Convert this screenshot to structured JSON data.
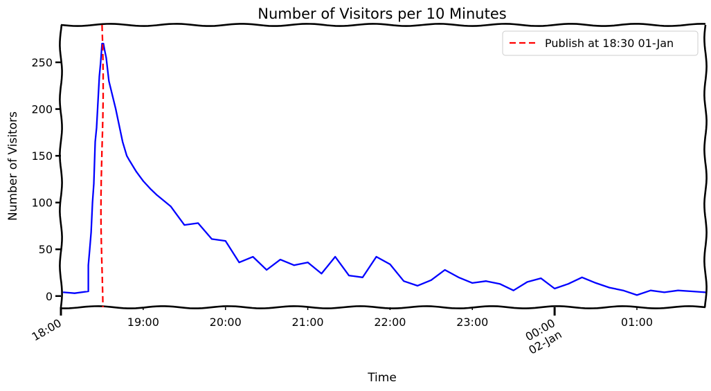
{
  "chart_data": {
    "type": "line",
    "title": "Number of Visitors per 10 Minutes",
    "xlabel": "Time",
    "ylabel": "Number of Visitors",
    "x_unit": "time of day (HH:MM), starting 01-Jan 18:00",
    "xlim": [
      "18:00",
      "01:50"
    ],
    "ylim": [
      -12,
      290
    ],
    "y_ticks": [
      0,
      50,
      100,
      150,
      200,
      250
    ],
    "x_ticks": [
      {
        "at": "18:00",
        "label": "18:00",
        "major": true,
        "rotated": true
      },
      {
        "at": "19:00",
        "label": "19:00",
        "major": false,
        "rotated": false
      },
      {
        "at": "20:00",
        "label": "20:00",
        "major": false,
        "rotated": false
      },
      {
        "at": "21:00",
        "label": "21:00",
        "major": false,
        "rotated": false
      },
      {
        "at": "22:00",
        "label": "22:00",
        "major": false,
        "rotated": false
      },
      {
        "at": "23:00",
        "label": "23:00",
        "major": false,
        "rotated": false
      },
      {
        "at": "00:00",
        "label": "00:00\n02-Jan",
        "major": true,
        "rotated": true
      },
      {
        "at": "01:00",
        "label": "01:00",
        "major": false,
        "rotated": false
      }
    ],
    "grid": false,
    "legend": "top-right",
    "series": [
      {
        "color": "#0000ff",
        "x": [
          "18:02",
          "18:10",
          "18:20",
          "18:20",
          "18:21",
          "18:22",
          "18:23",
          "18:24",
          "18:25",
          "18:26",
          "18:28",
          "18:29",
          "18:30",
          "18:31",
          "18:32",
          "18:33",
          "18:35",
          "18:40",
          "18:45",
          "18:48",
          "18:50",
          "18:55",
          "19:00",
          "19:05",
          "19:10",
          "19:20",
          "19:30",
          "19:40",
          "19:50",
          "20:00",
          "20:10",
          "20:20",
          "20:30",
          "20:40",
          "20:50",
          "21:00",
          "21:10",
          "21:20",
          "21:30",
          "21:40",
          "21:50",
          "22:00",
          "22:10",
          "22:20",
          "22:30",
          "22:40",
          "22:50",
          "23:00",
          "23:10",
          "23:20",
          "23:30",
          "23:40",
          "23:50",
          "00:00",
          "00:10",
          "00:20",
          "00:30",
          "00:40",
          "00:50",
          "01:00",
          "01:10",
          "01:20",
          "01:30",
          "01:40",
          "01:50"
        ],
        "values": [
          4,
          3,
          5,
          33,
          50,
          68,
          100,
          120,
          165,
          180,
          235,
          250,
          270,
          270,
          262,
          255,
          230,
          200,
          165,
          150,
          145,
          133,
          123,
          115,
          108,
          96,
          76,
          78,
          61,
          59,
          36,
          42,
          28,
          39,
          33,
          36,
          24,
          42,
          22,
          20,
          42,
          34,
          16,
          11,
          17,
          28,
          20,
          14,
          16,
          13,
          6,
          15,
          19,
          8,
          13,
          20,
          14,
          9,
          6,
          1,
          6,
          4,
          6,
          5,
          4
        ]
      },
      {
        "name": "Publish at 18:30 01-Jan",
        "color": "#ff0000",
        "style": "dashed",
        "vertical_at": "18:30"
      }
    ]
  }
}
